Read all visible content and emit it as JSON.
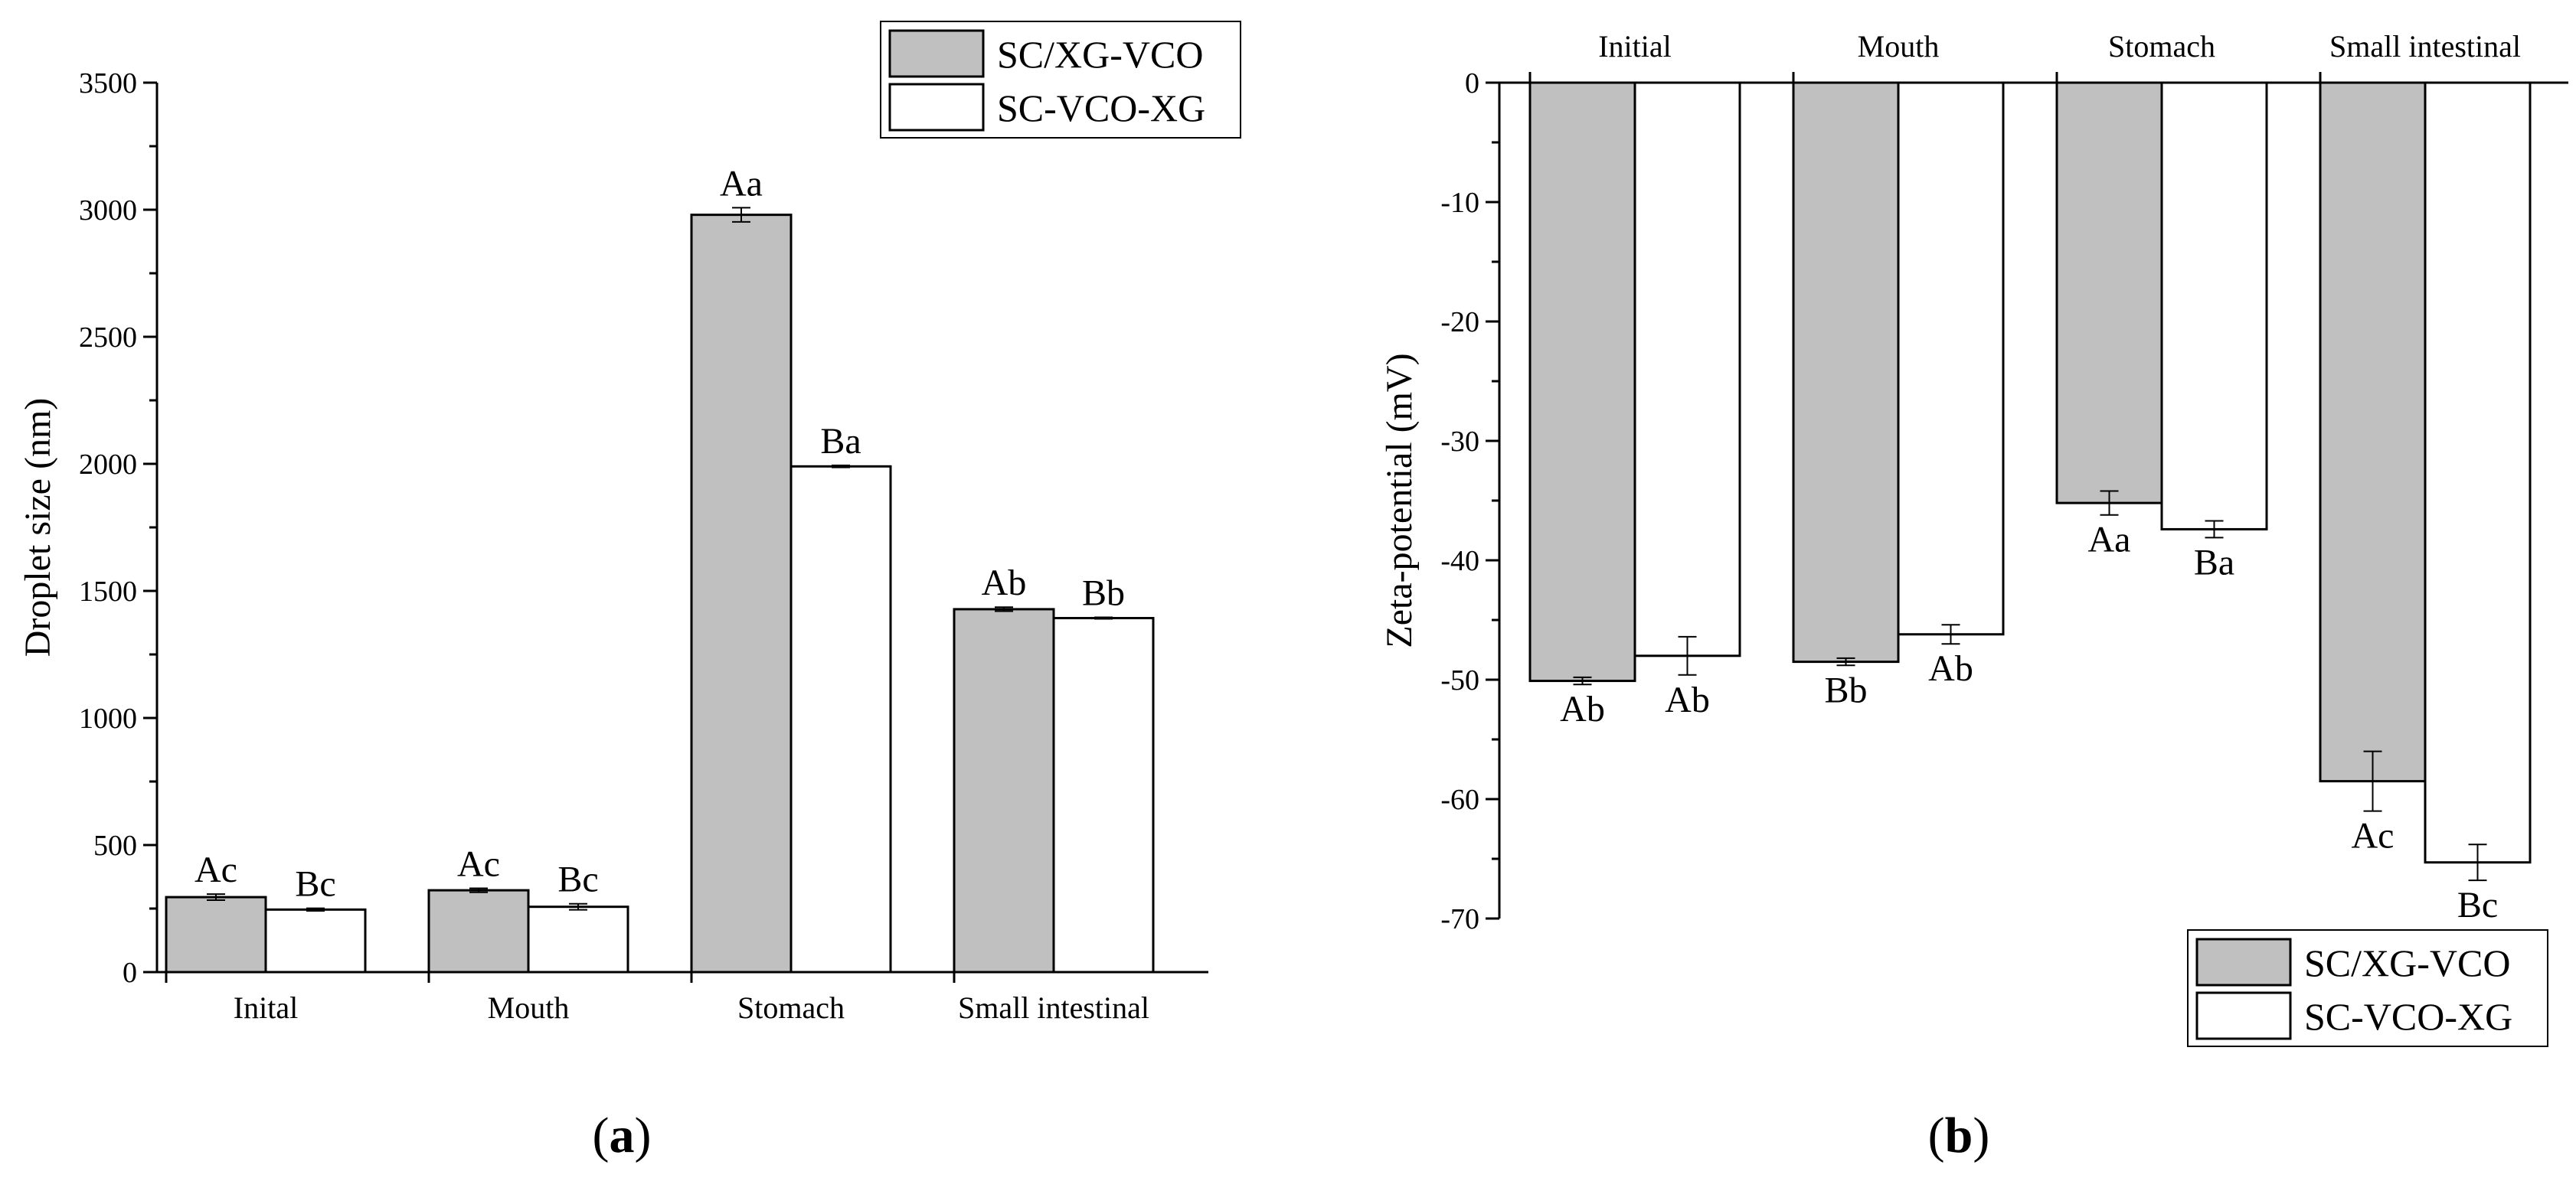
{
  "chart_data": [
    {
      "panel": "a",
      "type": "bar",
      "panel_label": {
        "open": "(",
        "letter": "a",
        "close": ")"
      },
      "categories": [
        "Inital",
        "Mouth",
        "Stomach",
        "Small intestinal"
      ],
      "series": [
        {
          "name": "SC/XG-VCO",
          "color": "#c0c0c0",
          "values": [
            295,
            322,
            2980,
            1428
          ],
          "errors": [
            12,
            8,
            28,
            8
          ],
          "labels": [
            "Ac",
            "Ac",
            "Aa",
            "Ab"
          ]
        },
        {
          "name": "SC-VCO-XG",
          "color": "#ffffff",
          "values": [
            246,
            257,
            1990,
            1393
          ],
          "errors": [
            5,
            12,
            4,
            3
          ],
          "labels": [
            "Bc",
            "Bc",
            "Ba",
            "Bb"
          ]
        }
      ],
      "ylabel": "Droplet size (nm)",
      "xlabel": "",
      "ylim": [
        0,
        3500
      ],
      "yticks": [
        0,
        500,
        1000,
        1500,
        2000,
        2500,
        3000,
        3500
      ],
      "legend": "top-right",
      "grid": false
    },
    {
      "panel": "b",
      "type": "bar",
      "panel_label": {
        "open": "(",
        "letter": "b",
        "close": ")"
      },
      "categories": [
        "Initial",
        "Mouth",
        "Stomach",
        "Small intestinal"
      ],
      "series": [
        {
          "name": "SC/XG-VCO",
          "color": "#c0c0c0",
          "values": [
            -50.1,
            -48.5,
            -35.2,
            -58.5
          ],
          "errors": [
            0.3,
            0.3,
            1.0,
            2.5
          ],
          "labels": [
            "Ab",
            "Bb",
            "Aa",
            "Ac"
          ]
        },
        {
          "name": "SC-VCO-XG",
          "color": "#ffffff",
          "values": [
            -48.0,
            -46.2,
            -37.4,
            -65.3
          ],
          "errors": [
            1.6,
            0.8,
            0.7,
            1.5
          ],
          "labels": [
            "Ab",
            "Ab",
            "Ba",
            "Bc"
          ]
        }
      ],
      "ylabel": "Zeta-potential (mV)",
      "xlabel": "",
      "ylim": [
        -70,
        0
      ],
      "yticks": [
        0,
        -10,
        -20,
        -30,
        -40,
        -50,
        -60,
        -70
      ],
      "legend": "bottom-right",
      "grid": false
    }
  ]
}
